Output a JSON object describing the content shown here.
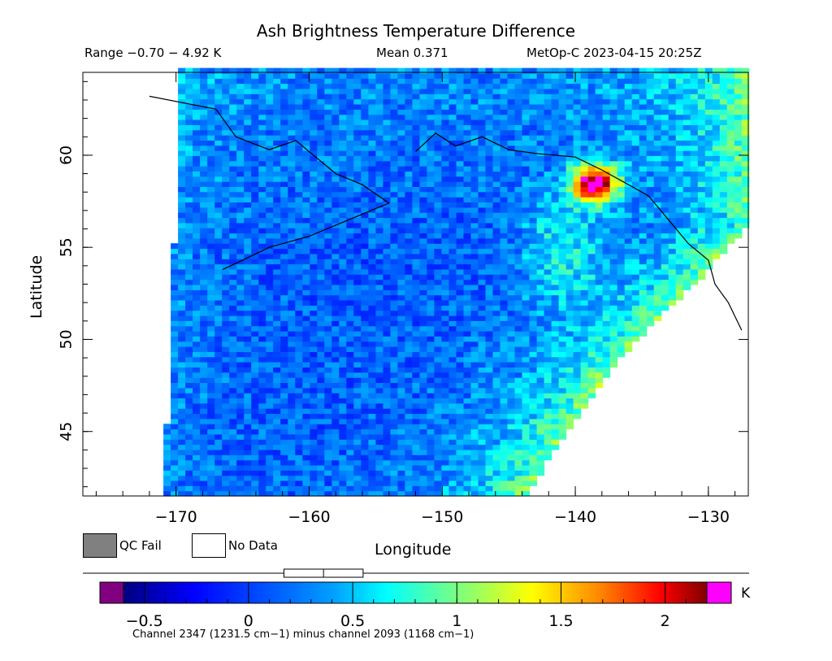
{
  "header": {
    "title": "Ash Brightness Temperature Difference",
    "range": "Range −0.70 − 4.92 K",
    "mean": "Mean 0.371",
    "satellite": "MetOp-C 2023-04-15 20:25Z"
  },
  "legend": {
    "qc_fail": "QC Fail",
    "no_data": "No Data",
    "qc_color": "#808080",
    "no_data_color": "#ffffff"
  },
  "colorbar": {
    "unit": "K",
    "ticks": [
      -0.5,
      0,
      0.5,
      1,
      1.5,
      2
    ],
    "tick_labels": [
      "−0.5",
      "0",
      "0.5",
      "1",
      "1.5",
      "2"
    ],
    "min": -0.6,
    "max": 2.2,
    "under_color": "#800080",
    "over_color": "#ff00ff",
    "footnote": "Channel 2347 (1231.5 cm−1) minus channel 2093 (1168 cm−1)",
    "box_plot": {
      "q1": 0.17,
      "median": 0.36,
      "q3": 0.55
    }
  },
  "chart_data": {
    "type": "heatmap",
    "title": "Ash Brightness Temperature Difference",
    "xlabel": "Longitude",
    "ylabel": "Latitude",
    "xlim": [
      -177,
      -127
    ],
    "ylim": [
      41.5,
      64.5
    ],
    "xticks": [
      -170,
      -160,
      -150,
      -140,
      -130
    ],
    "yticks": [
      45,
      50,
      55,
      60
    ],
    "xtick_labels": [
      "−170",
      "−160",
      "−150",
      "−140",
      "−130"
    ],
    "ytick_labels": [
      "45",
      "50",
      "55",
      "60"
    ],
    "value_range": [
      -0.7,
      4.92
    ],
    "mean": 0.371,
    "units": "K",
    "grid": false,
    "swath": {
      "west_edge": [
        [
          -170.9,
          41.5
        ],
        [
          -169.6,
          64.5
        ]
      ],
      "east_edge": [
        [
          -143.7,
          41.5
        ],
        [
          -141.5,
          44
        ],
        [
          -138.7,
          47
        ],
        [
          -136.5,
          49
        ],
        [
          -134.0,
          51
        ],
        [
          -131.0,
          53.0
        ],
        [
          -128.5,
          55.0
        ],
        [
          -127,
          56.1
        ]
      ],
      "top_right_corner": [
        -127,
        60.4
      ]
    },
    "features": [
      {
        "label": "ash_plume_peak",
        "lon": -138.5,
        "lat": 58.5,
        "value": 2.3
      },
      {
        "label": "elevated_band_ridge",
        "lon": -141.0,
        "lat": 55.0,
        "value": 1.2
      }
    ]
  }
}
